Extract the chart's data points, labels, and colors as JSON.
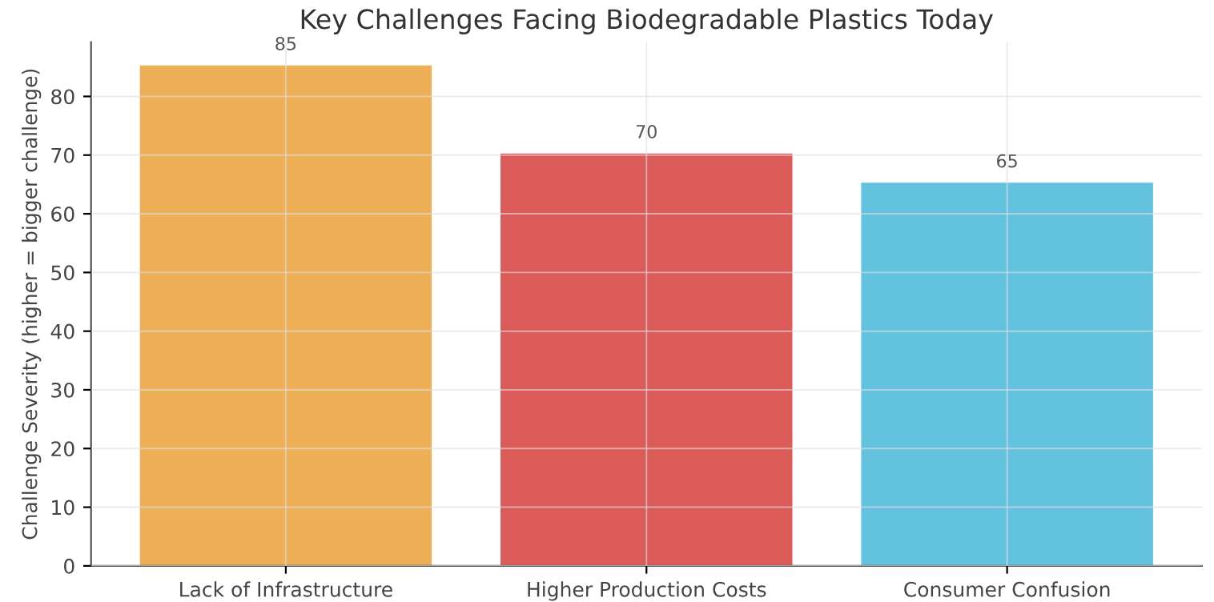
{
  "chart_data": {
    "type": "bar",
    "title": "Key Challenges Facing Biodegradable Plastics Today",
    "ylabel": "Challenge Severity (higher = bigger challenge)",
    "categories": [
      "Lack of Infrastructure",
      "Higher Production Costs",
      "Consumer Confusion"
    ],
    "values": [
      85,
      70,
      65
    ],
    "colors": [
      "#eeac4d",
      "#d9534f",
      "#5bc0de"
    ],
    "ylim": [
      0,
      89.25
    ],
    "yticks": [
      0,
      10,
      20,
      30,
      40,
      50,
      60,
      70,
      80
    ],
    "grid": true,
    "data_labels": true
  }
}
